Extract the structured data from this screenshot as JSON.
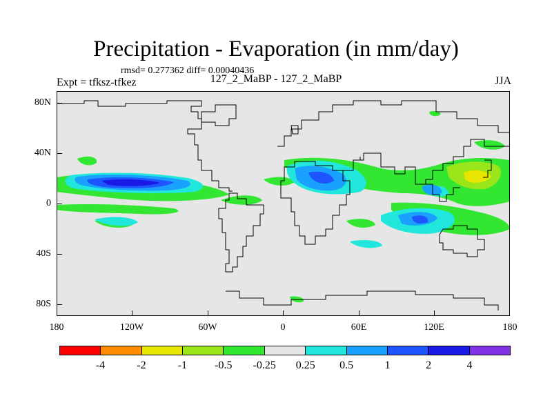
{
  "title": "Precipitation - Evaporation (in mm/day)",
  "stats": "rmsd= 0.277362 diff= 0.00040436",
  "subtitle_left": "Expt = tfksz-tfkez",
  "subtitle_center": "127_2_MaBP - 127_2_MaBP",
  "subtitle_right": "JJA",
  "axes": {
    "y_labels": [
      "80N",
      "40N",
      "0",
      "40S",
      "80S"
    ],
    "x_labels": [
      "180",
      "120W",
      "60W",
      "0",
      "60E",
      "120E",
      "180"
    ]
  },
  "colorbar": {
    "colors": [
      "#ff0000",
      "#ff8c00",
      "#e6e600",
      "#9be61a",
      "#32e632",
      "#e6e6e6",
      "#20e6dc",
      "#1aa0ff",
      "#1e55ff",
      "#1a1ae6",
      "#8232e6"
    ],
    "labels": [
      "-4",
      "-2",
      "-1",
      "-0.5",
      "-0.25",
      "0.25",
      "0.5",
      "1",
      "2",
      "4"
    ]
  },
  "colors": {
    "land_fill": "#e6e6e6",
    "coastline": "#000000"
  }
}
